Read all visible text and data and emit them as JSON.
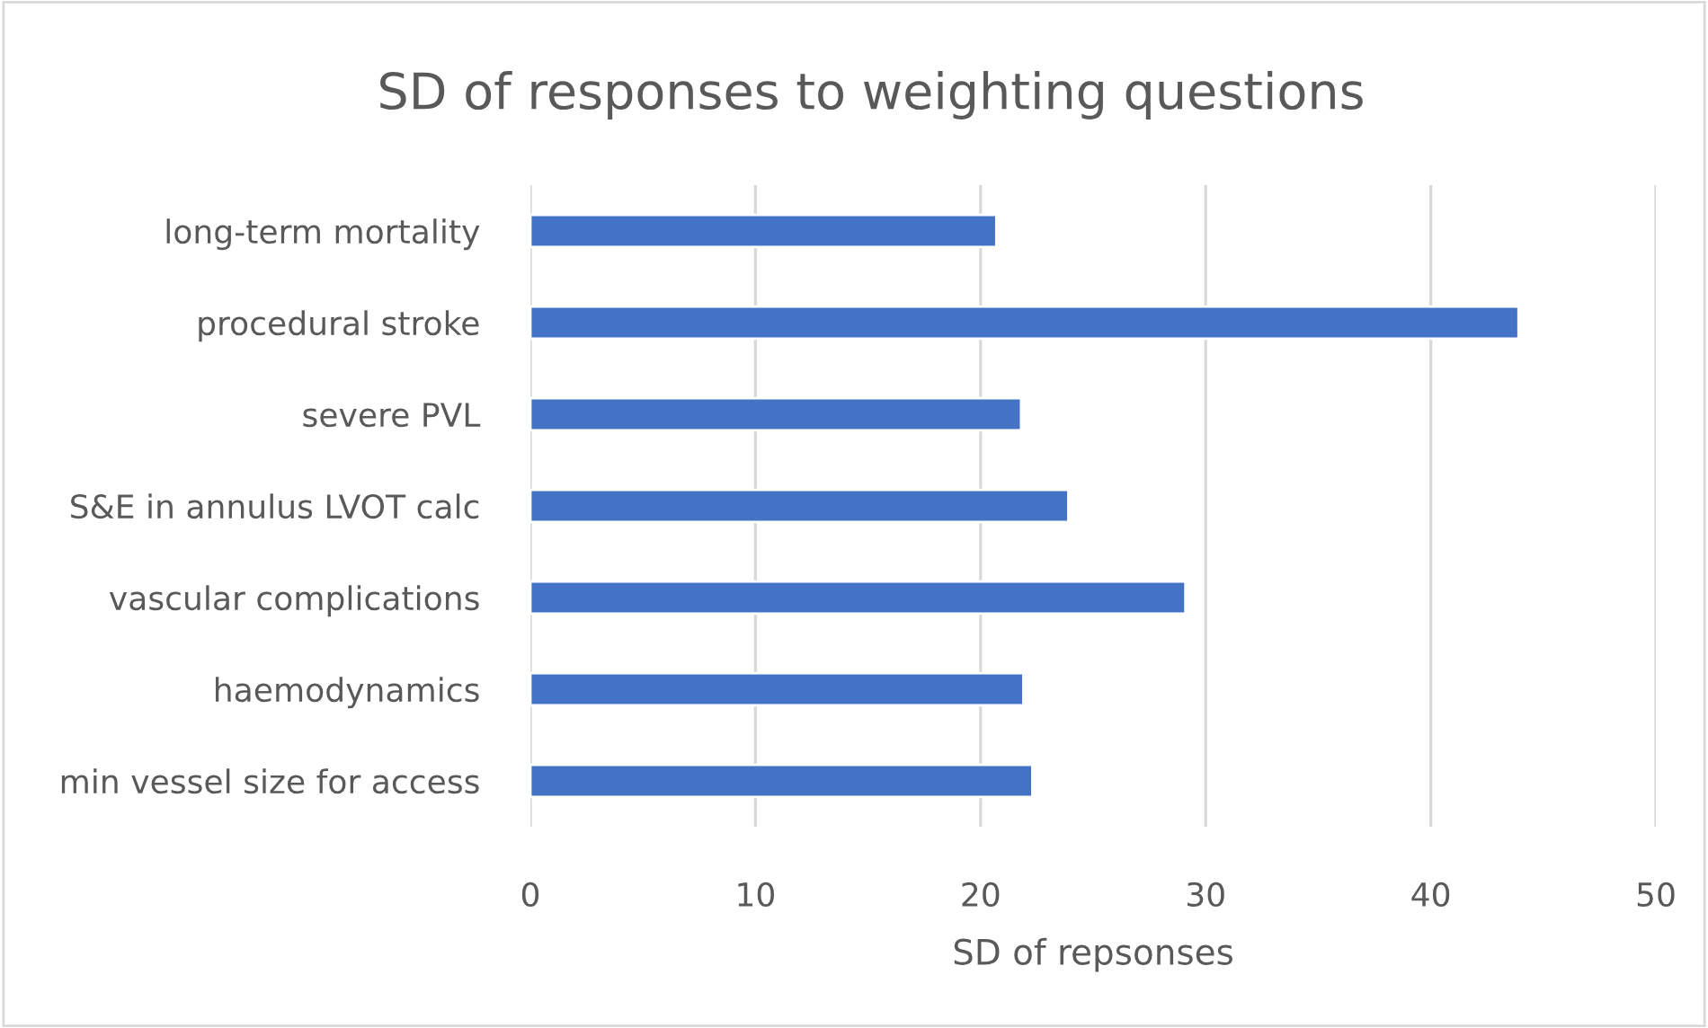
{
  "chart_data": {
    "type": "bar",
    "orientation": "horizontal",
    "title": "SD of responses to weighting questions",
    "xlabel": "SD of repsonses",
    "categories": [
      "long-term mortality",
      "procedural stroke",
      "severe PVL",
      "S&E in annulus LVOT calc",
      "vascular complications",
      "haemodynamics",
      "min vessel size for access"
    ],
    "values": [
      20.7,
      43.9,
      21.8,
      23.9,
      29.1,
      21.9,
      22.3
    ],
    "color": "#4472c4",
    "xlim": [
      0,
      50
    ],
    "xticks": [
      0,
      10,
      20,
      30,
      40,
      50
    ],
    "grid": "x",
    "legend": false
  }
}
